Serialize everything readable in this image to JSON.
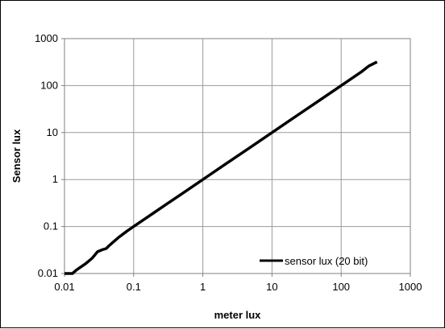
{
  "chart_data": {
    "type": "line",
    "title": "",
    "xlabel": "meter lux",
    "ylabel": "Sensor lux",
    "x_scale": "log",
    "y_scale": "log",
    "xlim": [
      0.01,
      1000
    ],
    "ylim": [
      0.01,
      1000
    ],
    "x_ticks": [
      "0.01",
      "0.1",
      "1",
      "10",
      "100",
      "1000"
    ],
    "y_ticks": [
      "0.01",
      "0.1",
      "1",
      "10",
      "100",
      "1000"
    ],
    "grid": true,
    "legend_position": "bottom-right",
    "series": [
      {
        "name": "sensor lux (20 bit)",
        "color": "#000000",
        "x": [
          0.01,
          0.013,
          0.015,
          0.02,
          0.025,
          0.03,
          0.035,
          0.04,
          0.045,
          0.05,
          0.06,
          0.08,
          0.1,
          0.15,
          0.2,
          0.3,
          0.5,
          1,
          2,
          5,
          10,
          20,
          50,
          100,
          200,
          250,
          330
        ],
        "y": [
          0.01,
          0.01,
          0.012,
          0.016,
          0.021,
          0.029,
          0.032,
          0.034,
          0.04,
          0.046,
          0.058,
          0.08,
          0.1,
          0.15,
          0.2,
          0.3,
          0.5,
          1,
          2,
          5,
          10,
          20,
          50,
          100,
          200,
          260,
          320
        ]
      }
    ]
  }
}
